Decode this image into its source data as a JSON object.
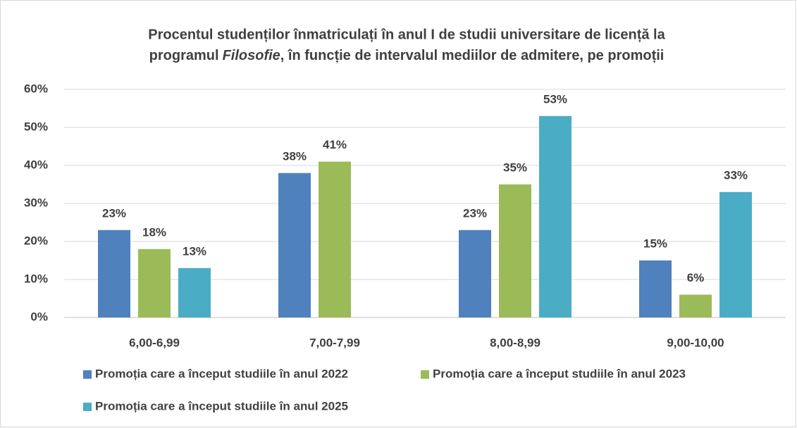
{
  "chart_data": {
    "type": "bar",
    "title": [
      "Procentul studenților înmatriculați în anul I de studii universitare de licență la",
      "programul",
      "Filosofie",
      ", în funcție de intervalul mediilor de admitere, pe promoții"
    ],
    "categories": [
      "6,00-6,99",
      "7,00-7,99",
      "8,00-8,99",
      "9,00-10,00"
    ],
    "series": [
      {
        "name": "Promoția care a început studiile în anul 2022",
        "color": "#4f81bd",
        "values": [
          23,
          38,
          23,
          15
        ],
        "value_labels": [
          "23%",
          "38%",
          "23%",
          "15%"
        ]
      },
      {
        "name": "Promoția care a început studiile în anul 2023",
        "color": "#9bbb59",
        "values": [
          18,
          41,
          35,
          6
        ],
        "value_labels": [
          "18%",
          "41%",
          "35%",
          "6%"
        ]
      },
      {
        "name": "Promoția care a început studiile în anul 2025",
        "color": "#4bacc6",
        "values": [
          13,
          null,
          53,
          33
        ],
        "value_labels": [
          "13%",
          null,
          "53%",
          "33%"
        ]
      }
    ],
    "ylim": [
      0,
      60
    ],
    "yticks": [
      {
        "value": 0,
        "label": "0%"
      },
      {
        "value": 10,
        "label": "10%"
      },
      {
        "value": 20,
        "label": "20%"
      },
      {
        "value": 30,
        "label": "30%"
      },
      {
        "value": 40,
        "label": "40%"
      },
      {
        "value": 50,
        "label": "50%"
      },
      {
        "value": 60,
        "label": "60%"
      }
    ],
    "grid": true,
    "legend": "bottom"
  }
}
